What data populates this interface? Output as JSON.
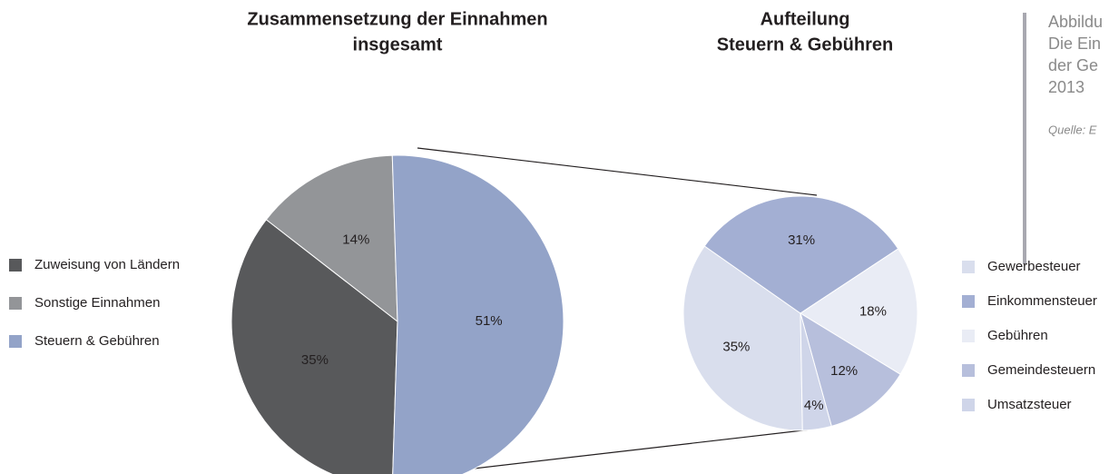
{
  "chart_data": [
    {
      "type": "pie",
      "title": [
        "Zusammensetzung der Einnahmen",
        "insgesamt"
      ],
      "categories": [
        "Zuweisung von Ländern",
        "Sonstige Einnahmen",
        "Steuern & Gebühren"
      ],
      "values": [
        35,
        14,
        51
      ],
      "value_labels": [
        "35%",
        "14%",
        "51%"
      ],
      "colors": [
        "#58595b",
        "#939598",
        "#93a3c8"
      ]
    },
    {
      "type": "pie",
      "title": [
        "Aufteilung",
        "Steuern & Gebühren"
      ],
      "categories": [
        "Gewerbesteuer",
        "Einkommensteuer",
        "Gebühren",
        "Gemeindesteuern",
        "Umsatzsteuer"
      ],
      "values": [
        35,
        31,
        18,
        12,
        4
      ],
      "value_labels": [
        "35%",
        "31%",
        "18%",
        "12%",
        "4%"
      ],
      "colors": [
        "#d9deed",
        "#a3afd3",
        "#e9ecf5",
        "#b7bfdc",
        "#cfd5e9"
      ]
    }
  ],
  "note": {
    "lines": [
      "Abbildu",
      "Die Ein",
      "der Ge",
      "2013"
    ],
    "source": "Quelle: E"
  }
}
